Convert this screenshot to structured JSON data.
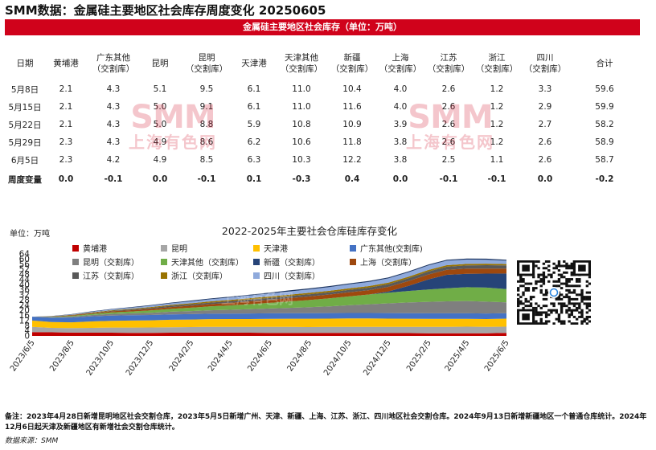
{
  "title": "SMM数据：金属硅主要地区社会库存周度变化 20250605",
  "table": {
    "banner": "金属硅主要地区社会库存（单位：万吨）",
    "headers": [
      [
        "日期"
      ],
      [
        "黄埔港"
      ],
      [
        "广东其他",
        "（交割库）"
      ],
      [
        "昆明"
      ],
      [
        "昆明",
        "（交割库）"
      ],
      [
        "天津港"
      ],
      [
        "天津其他",
        "（交割库）"
      ],
      [
        "新疆",
        "（交割库）"
      ],
      [
        "上海",
        "（交割库）"
      ],
      [
        "江苏",
        "（交割库）"
      ],
      [
        "浙江",
        "（交割库）"
      ],
      [
        "四川",
        "（交割库）"
      ],
      [
        "合计"
      ]
    ],
    "rows": [
      [
        "5月8日",
        "2.1",
        "4.3",
        "5.1",
        "9.5",
        "6.1",
        "11.0",
        "10.4",
        "4.0",
        "2.6",
        "1.2",
        "3.3",
        "59.6"
      ],
      [
        "5月15日",
        "2.1",
        "4.3",
        "5.0",
        "9.1",
        "6.1",
        "11.0",
        "11.6",
        "4.0",
        "2.6",
        "1.2",
        "2.9",
        "59.9"
      ],
      [
        "5月22日",
        "2.1",
        "4.3",
        "5.0",
        "8.8",
        "5.9",
        "10.8",
        "10.9",
        "3.9",
        "2.6",
        "1.2",
        "2.7",
        "58.2"
      ],
      [
        "5月29日",
        "2.3",
        "4.3",
        "4.9",
        "8.6",
        "6.2",
        "10.6",
        "11.8",
        "3.8",
        "2.6",
        "1.2",
        "2.6",
        "58.9"
      ],
      [
        "6月5日",
        "2.3",
        "4.2",
        "4.9",
        "8.5",
        "6.3",
        "10.3",
        "12.2",
        "3.8",
        "2.5",
        "1.1",
        "2.6",
        "58.7"
      ]
    ],
    "change_row": [
      "周度变量",
      "0.0",
      "-0.1",
      "0.0",
      "-0.1",
      "0.1",
      "-0.3",
      "0.4",
      "0.0",
      "-0.1",
      "-0.1",
      "0.0",
      "-0.2"
    ]
  },
  "watermark": {
    "big": "SMM",
    "small": "上海有色网"
  },
  "chart_data": {
    "type": "area",
    "stacked": true,
    "title": "2022-2025年主要社会仓库硅库存变化",
    "unit_label": "单位：万吨",
    "y_ticks": [
      "0",
      "4",
      "8",
      "12",
      "16",
      "20",
      "24",
      "28",
      "32",
      "36",
      "40",
      "44",
      "48",
      "52",
      "56",
      "60",
      "64"
    ],
    "ylim": [
      0,
      64
    ],
    "x_ticks": [
      "2023/6/5",
      "2023/8/5",
      "2023/10/5",
      "2023/12/5",
      "2024/2/5",
      "2024/4/5",
      "2024/6/5",
      "2024/8/5",
      "2024/10/5",
      "2024/12/5",
      "2025/2/5",
      "2025/4/5",
      "2025/6/5"
    ],
    "x": [
      "2023/6/1",
      "2023/7/1",
      "2023/8/1",
      "2023/9/1",
      "2023/10/1",
      "2023/11/1",
      "2023/12/1",
      "2024/1/1",
      "2024/2/1",
      "2024/3/1",
      "2024/4/1",
      "2024/5/1",
      "2024/6/1",
      "2024/7/1",
      "2024/8/1",
      "2024/9/1",
      "2024/10/1",
      "2024/11/1",
      "2024/12/1",
      "2025/1/1",
      "2025/2/1",
      "2025/3/1",
      "2025/4/1",
      "2025/5/1",
      "2025/6/1"
    ],
    "series": [
      {
        "name": "黄埔港",
        "color": "#c00000",
        "values": [
          3.0,
          2.8,
          2.6,
          2.5,
          2.5,
          2.4,
          2.4,
          2.5,
          2.6,
          2.7,
          2.6,
          2.5,
          2.4,
          2.4,
          2.3,
          2.3,
          2.3,
          2.2,
          2.2,
          2.2,
          2.1,
          2.1,
          2.1,
          2.1,
          2.3
        ]
      },
      {
        "name": "昆明",
        "color": "#a6a6a6",
        "values": [
          4.0,
          3.5,
          3.5,
          3.8,
          4.0,
          4.1,
          4.2,
          4.3,
          4.3,
          4.4,
          4.5,
          4.5,
          4.6,
          4.6,
          4.6,
          4.7,
          4.7,
          4.8,
          4.8,
          4.8,
          4.9,
          5.0,
          5.1,
          5.0,
          4.9
        ]
      },
      {
        "name": "天津港",
        "color": "#ffc000",
        "values": [
          5.0,
          4.5,
          4.5,
          5.0,
          5.3,
          5.5,
          5.6,
          5.8,
          5.9,
          6.0,
          6.1,
          6.2,
          6.3,
          6.4,
          6.5,
          6.5,
          6.6,
          6.6,
          6.5,
          6.4,
          6.3,
          6.2,
          6.1,
          6.1,
          6.3
        ]
      },
      {
        "name": "广东其他(交割库)",
        "color": "#4472c4",
        "values": [
          3.0,
          3.5,
          3.8,
          4.0,
          4.1,
          4.1,
          4.1,
          4.2,
          4.2,
          4.2,
          4.2,
          4.3,
          4.3,
          4.3,
          4.3,
          4.3,
          4.3,
          4.3,
          4.3,
          4.3,
          4.3,
          4.3,
          4.3,
          4.3,
          4.2
        ]
      },
      {
        "name": "昆明（交割库）",
        "color": "#7f7f7f",
        "values": [
          0.0,
          0.3,
          0.7,
          1.0,
          1.3,
          1.5,
          1.8,
          2.1,
          2.4,
          2.7,
          3.0,
          3.4,
          3.8,
          4.2,
          4.7,
          5.3,
          6.0,
          6.8,
          7.6,
          8.4,
          9.0,
          9.4,
          9.6,
          9.2,
          8.5
        ]
      },
      {
        "name": "天津其他（交割库）",
        "color": "#70ad47",
        "values": [
          0.0,
          0.3,
          0.6,
          0.9,
          1.2,
          1.5,
          1.8,
          2.2,
          2.6,
          3.0,
          3.4,
          3.9,
          4.4,
          5.0,
          5.6,
          6.2,
          6.9,
          7.6,
          8.3,
          9.0,
          9.6,
          10.2,
          10.8,
          11.0,
          10.3
        ]
      },
      {
        "name": "新疆（交割库）",
        "color": "#264478",
        "values": [
          0.0,
          0.0,
          0.0,
          0.0,
          0.0,
          0.0,
          0.0,
          0.0,
          0.0,
          0.0,
          0.0,
          0.0,
          0.0,
          0.0,
          0.0,
          0.0,
          0.0,
          0.0,
          1.0,
          4.0,
          8.0,
          10.5,
          10.5,
          10.9,
          12.2
        ]
      },
      {
        "name": "上海（交割库）",
        "color": "#9e480e",
        "values": [
          0.0,
          0.2,
          0.4,
          0.6,
          0.8,
          1.0,
          1.2,
          1.4,
          1.6,
          1.8,
          2.0,
          2.2,
          2.4,
          2.6,
          2.8,
          3.0,
          3.2,
          3.4,
          3.6,
          3.7,
          3.8,
          3.9,
          4.0,
          4.0,
          3.8
        ]
      },
      {
        "name": "江苏（交割库）",
        "color": "#595959",
        "values": [
          0.0,
          0.1,
          0.2,
          0.3,
          0.4,
          0.6,
          0.8,
          1.0,
          1.1,
          1.2,
          1.3,
          1.4,
          1.5,
          1.6,
          1.7,
          1.8,
          1.9,
          2.0,
          2.1,
          2.2,
          2.3,
          2.4,
          2.5,
          2.6,
          2.5
        ]
      },
      {
        "name": "浙江（交割库）",
        "color": "#997300",
        "values": [
          0.0,
          0.1,
          0.2,
          0.3,
          0.4,
          0.5,
          0.6,
          0.7,
          0.8,
          0.9,
          1.0,
          1.0,
          1.1,
          1.1,
          1.1,
          1.1,
          1.2,
          1.2,
          1.2,
          1.2,
          1.2,
          1.2,
          1.2,
          1.2,
          1.1
        ]
      },
      {
        "name": "四川（交割库）",
        "color": "#8faadc",
        "values": [
          0.0,
          0.1,
          0.3,
          0.5,
          0.7,
          0.9,
          1.1,
          1.3,
          1.5,
          1.7,
          1.9,
          2.1,
          2.3,
          2.5,
          2.7,
          2.9,
          3.1,
          3.2,
          3.3,
          3.4,
          3.5,
          3.5,
          3.4,
          3.1,
          2.6
        ]
      },
      {
        "name": "",
        "color": "#1f3864",
        "values": [
          0.0,
          0.1,
          0.2,
          0.3,
          0.3,
          0.4,
          0.5,
          0.5,
          0.6,
          0.6,
          0.7,
          0.7,
          0.7,
          0.8,
          0.8,
          0.8,
          0.8,
          0.8,
          0.8,
          0.8,
          0.8,
          0.8,
          0.8,
          0.8,
          0.8
        ]
      }
    ]
  },
  "note": "备注：2023年4月28日新增昆明地区社会交割仓库，2023年5月5日新增广州、天津、新疆、上海、江苏、浙江、四川地区社会交割仓库。2024年9月13日新增新疆地区一个普通仓库统计。2024年12月6日起天津及新疆地区有新增社会交割仓库统计。",
  "source": "数据来源：SMM"
}
